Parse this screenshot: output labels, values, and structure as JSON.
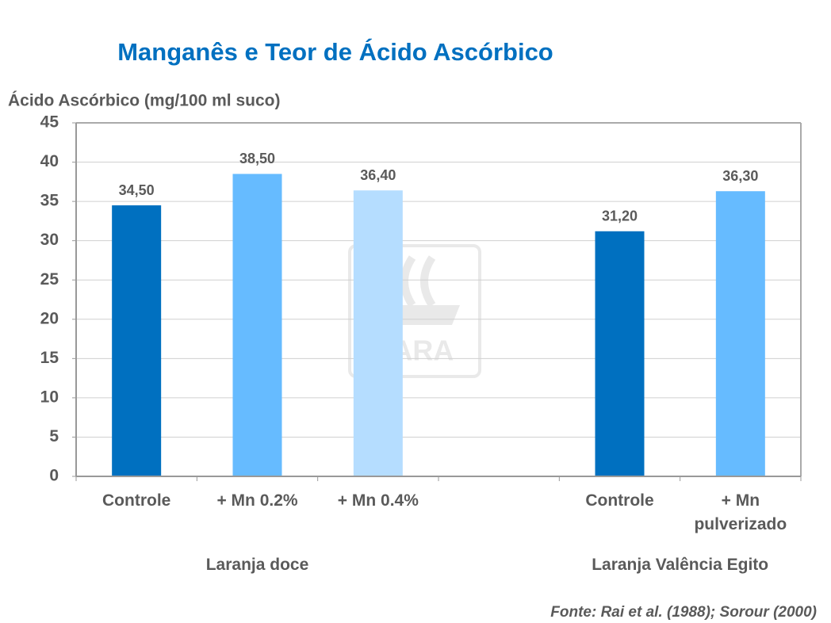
{
  "chart_data": {
    "type": "bar",
    "title": "Manganês e Teor de Ácido Ascórbico",
    "y_label": "Ácido Ascórbico (mg/100 ml suco)",
    "categories": [
      "Controle",
      "+ Mn 0.2%",
      "+ Mn 0.4%",
      null,
      "Controle",
      "+ Mn pulverizado"
    ],
    "values": [
      34.5,
      38.5,
      36.4,
      null,
      31.2,
      36.3
    ],
    "value_labels": [
      "34,50",
      "38,50",
      "36,40",
      null,
      "31,20",
      "36,30"
    ],
    "colors": [
      "#0070c0",
      "#66bbff",
      "#b5ddff",
      null,
      "#0070c0",
      "#66bbff"
    ],
    "groups": [
      {
        "label": "Laranja doce",
        "from": 0,
        "to": 2
      },
      {
        "label": "Laranja Valência Egito",
        "from": 4,
        "to": 5
      }
    ],
    "ylim": [
      0,
      45
    ],
    "yticks": [
      0,
      5,
      10,
      15,
      20,
      25,
      30,
      35,
      40,
      45
    ],
    "grid": true,
    "source": "Fonte: Rai et al. (1988); Sorour (2000)",
    "watermark": "YARA"
  }
}
